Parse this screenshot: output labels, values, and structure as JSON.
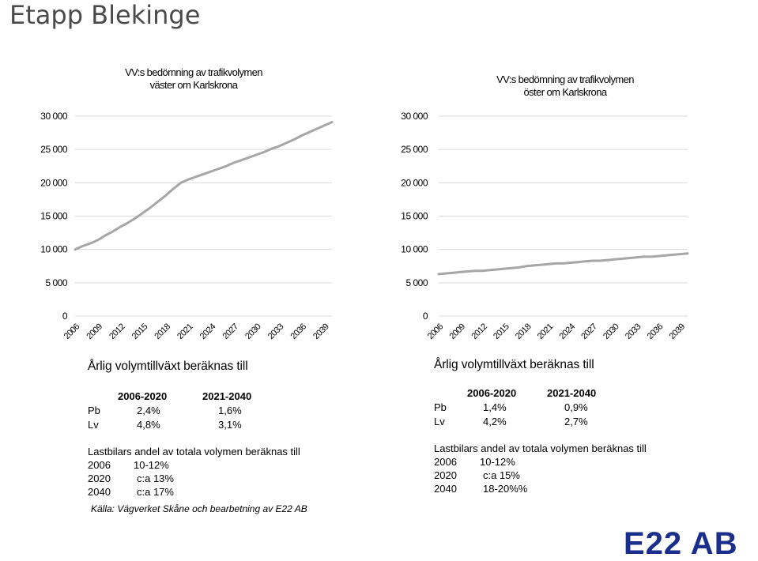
{
  "page": {
    "title": "Etapp Blekinge",
    "source": "Källa: Vägverket Skåne och bearbetning av E22 AB",
    "logo": "E22 AB"
  },
  "chart_data": [
    {
      "type": "line",
      "title_lines": [
        "VV:s bedömning av trafikvolymen",
        "väster om Karlskrona"
      ],
      "x": [
        2006,
        2007,
        2008,
        2009,
        2010,
        2011,
        2012,
        2013,
        2014,
        2015,
        2016,
        2017,
        2018,
        2019,
        2020,
        2021,
        2022,
        2023,
        2024,
        2025,
        2026,
        2027,
        2028,
        2029,
        2030,
        2031,
        2032,
        2033,
        2034,
        2035,
        2036,
        2037,
        2038,
        2039,
        2040
      ],
      "series": [
        {
          "values": [
            10000,
            10500,
            10900,
            11400,
            12100,
            12700,
            13400,
            14000,
            14700,
            15500,
            16300,
            17200,
            18100,
            19100,
            20000,
            20500,
            20900,
            21300,
            21700,
            22100,
            22500,
            23000,
            23400,
            23800,
            24200,
            24600,
            25100,
            25500,
            26000,
            26500,
            27100,
            27600,
            28100,
            28600,
            29100
          ],
          "color": "#a6a6a6"
        }
      ],
      "xticks": [
        "2006",
        "2009",
        "2012",
        "2015",
        "2018",
        "2021",
        "2024",
        "2027",
        "2030",
        "2033",
        "2036",
        "2039"
      ],
      "yticks": [
        "0",
        "5 000",
        "10 000",
        "15 000",
        "20 000",
        "25 000",
        "30 000"
      ],
      "ylim": [
        0,
        30000
      ],
      "grid": true,
      "xlabel": "",
      "ylabel": ""
    },
    {
      "type": "line",
      "title_lines": [
        "VV:s bedömning av trafikvolymen",
        "öster om Karlskrona"
      ],
      "x": [
        2006,
        2007,
        2008,
        2009,
        2010,
        2011,
        2012,
        2013,
        2014,
        2015,
        2016,
        2017,
        2018,
        2019,
        2020,
        2021,
        2022,
        2023,
        2024,
        2025,
        2026,
        2027,
        2028,
        2029,
        2030,
        2031,
        2032,
        2033,
        2034,
        2035,
        2036,
        2037,
        2038,
        2039,
        2040
      ],
      "series": [
        {
          "values": [
            6300,
            6400,
            6500,
            6600,
            6700,
            6800,
            6800,
            6900,
            7000,
            7100,
            7200,
            7300,
            7500,
            7600,
            7700,
            7800,
            7900,
            7900,
            8000,
            8100,
            8200,
            8300,
            8300,
            8400,
            8500,
            8600,
            8700,
            8800,
            8900,
            8900,
            9000,
            9100,
            9200,
            9300,
            9400
          ],
          "color": "#a6a6a6"
        }
      ],
      "xticks": [
        "2006",
        "2009",
        "2012",
        "2015",
        "2018",
        "2021",
        "2024",
        "2027",
        "2030",
        "2033",
        "2036",
        "2039"
      ],
      "yticks": [
        "0",
        "5 000",
        "10 000",
        "15 000",
        "20 000",
        "25 000",
        "30 000"
      ],
      "ylim": [
        0,
        30000
      ],
      "grid": true,
      "xlabel": "",
      "ylabel": ""
    }
  ],
  "left_panel": {
    "heading": "Årlig volymtillväxt beräknas till",
    "periods": [
      "2006-2020",
      "2021-2040"
    ],
    "rows": [
      {
        "label": "Pb",
        "v1": "2,4%",
        "v2": "1,6%"
      },
      {
        "label": "Lv",
        "v1": "4,8%",
        "v2": "3,1%"
      }
    ],
    "truck_heading": "Lastbilars andel av totala volymen beräknas till",
    "truck_rows": [
      {
        "year": "2006",
        "value": "10-12%"
      },
      {
        "year": "2020",
        "value": "c:a 13%"
      },
      {
        "year": "2040",
        "value": "c:a 17%"
      }
    ]
  },
  "right_panel": {
    "heading": "Årlig volymtillväxt beräknas till",
    "periods": [
      "2006-2020",
      "2021-2040"
    ],
    "rows": [
      {
        "label": "Pb",
        "v1": "1,4%",
        "v2": "0,9%"
      },
      {
        "label": "Lv",
        "v1": "4,2%",
        "v2": "2,7%"
      }
    ],
    "truck_heading": "Lastbilars andel av totala volymen beräknas till",
    "truck_rows": [
      {
        "year": "2006",
        "value": "10-12%"
      },
      {
        "year": "2020",
        "value": "c:a 15%"
      },
      {
        "year": "2040",
        "value": "18-20%%"
      }
    ]
  }
}
